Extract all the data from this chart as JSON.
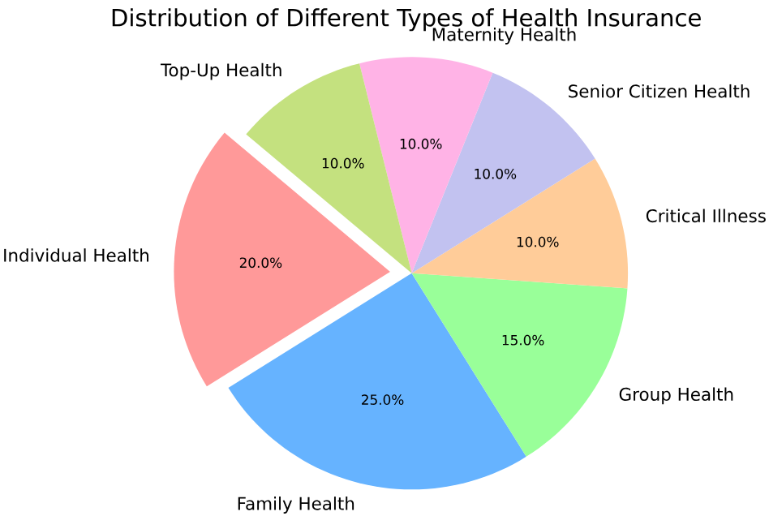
{
  "chart_data": {
    "type": "pie",
    "title": "Distribution of Different Types of Health Insurance",
    "categories": [
      "Individual Health",
      "Family Health",
      "Group Health",
      "Critical Illness",
      "Senior Citizen Health",
      "Maternity Health",
      "Top-Up Health"
    ],
    "values": [
      20,
      25,
      15,
      10,
      10,
      10,
      10
    ],
    "colors": [
      "#ff9999",
      "#66b3ff",
      "#99ff99",
      "#ffcc99",
      "#c2c2f0",
      "#ffb3e6",
      "#c4e17f"
    ],
    "value_labels": [
      "20.0%",
      "25.0%",
      "15.0%",
      "10.0%",
      "10.0%",
      "10.0%",
      "10.0%"
    ]
  }
}
